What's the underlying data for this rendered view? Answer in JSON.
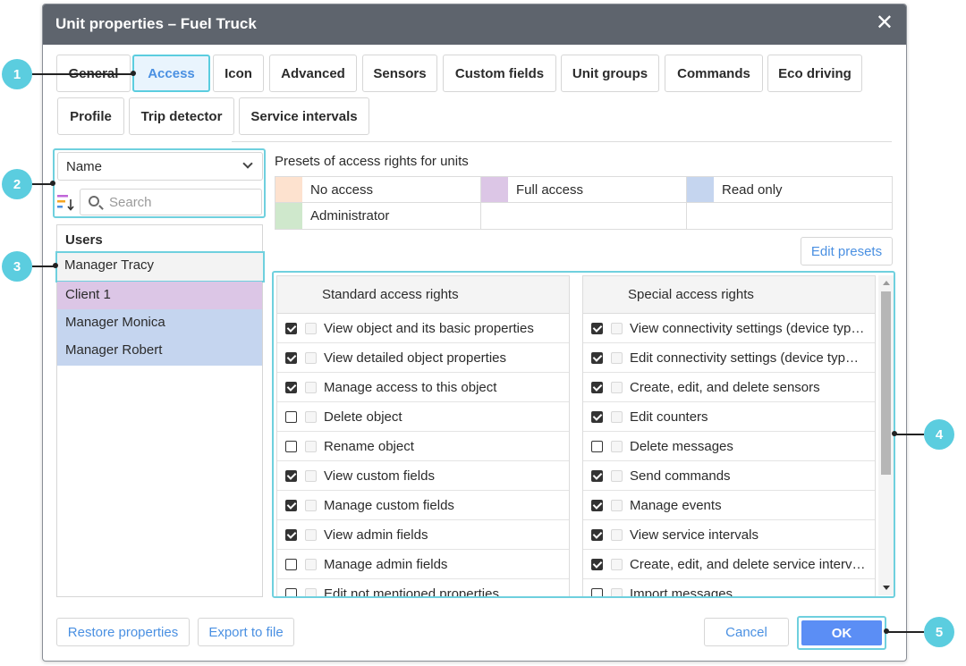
{
  "dialog": {
    "title": "Unit properties – Fuel Truck",
    "close_glyph": "✕"
  },
  "tabs": [
    {
      "label": "General"
    },
    {
      "label": "Access"
    },
    {
      "label": "Icon"
    },
    {
      "label": "Advanced"
    },
    {
      "label": "Sensors"
    },
    {
      "label": "Custom fields"
    },
    {
      "label": "Unit groups"
    },
    {
      "label": "Commands"
    },
    {
      "label": "Eco driving"
    },
    {
      "label": "Profile"
    },
    {
      "label": "Trip detector"
    },
    {
      "label": "Service intervals"
    }
  ],
  "active_tab": "Access",
  "filter": {
    "sort_value": "Name",
    "search_placeholder": "Search"
  },
  "users": {
    "header": "Users",
    "items": [
      {
        "name": "Manager Tracy",
        "color": "#f3f3f3"
      },
      {
        "name": "Client 1",
        "color": "#dcc6e6"
      },
      {
        "name": "Manager Monica",
        "color": "#c5d5ef"
      },
      {
        "name": "Manager Robert",
        "color": "#c5d5ef"
      }
    ]
  },
  "presets": {
    "label": "Presets of access rights for units",
    "items": [
      {
        "name": "No access",
        "color": "#fde2cf"
      },
      {
        "name": "Full access",
        "color": "#dcc6e6"
      },
      {
        "name": "Read only",
        "color": "#c5d5ef"
      },
      {
        "name": "Administrator",
        "color": "#cfe8cc"
      }
    ],
    "edit_button": "Edit presets"
  },
  "standard": {
    "header": "Standard access rights",
    "rows": [
      {
        "label": "View object and its basic properties",
        "checked": true
      },
      {
        "label": "View detailed object properties",
        "checked": true
      },
      {
        "label": "Manage access to this object",
        "checked": true
      },
      {
        "label": "Delete object",
        "checked": false
      },
      {
        "label": "Rename object",
        "checked": false
      },
      {
        "label": "View custom fields",
        "checked": true
      },
      {
        "label": "Manage custom fields",
        "checked": true
      },
      {
        "label": "View admin fields",
        "checked": true
      },
      {
        "label": "Manage admin fields",
        "checked": false
      },
      {
        "label": "Edit not mentioned properties",
        "checked": false
      }
    ]
  },
  "special": {
    "header": "Special access rights",
    "rows": [
      {
        "label": "View connectivity settings (device typ…",
        "checked": true
      },
      {
        "label": "Edit connectivity settings (device typ…",
        "checked": true
      },
      {
        "label": "Create, edit, and delete sensors",
        "checked": true
      },
      {
        "label": "Edit counters",
        "checked": true
      },
      {
        "label": "Delete messages",
        "checked": false
      },
      {
        "label": "Send commands",
        "checked": true
      },
      {
        "label": "Manage events",
        "checked": true
      },
      {
        "label": "View service intervals",
        "checked": true
      },
      {
        "label": "Create, edit, and delete service interv…",
        "checked": true
      },
      {
        "label": "Import messages",
        "checked": false
      }
    ]
  },
  "footer": {
    "restore": "Restore properties",
    "export": "Export to file",
    "cancel": "Cancel",
    "ok": "OK"
  },
  "callouts": [
    "1",
    "2",
    "3",
    "4",
    "5"
  ],
  "colors": {
    "accent": "#4a90e2",
    "highlight": "#5bcddf",
    "ok": "#5b8ef5",
    "titlebar": "#5e646d"
  }
}
